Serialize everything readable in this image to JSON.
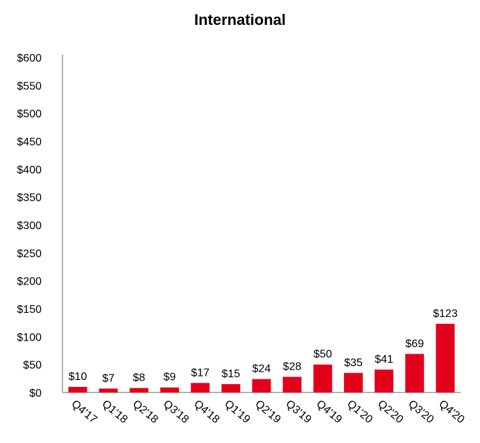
{
  "chart_data": {
    "type": "bar",
    "title": "International",
    "xlabel": "",
    "ylabel": "",
    "categories": [
      "Q4'17",
      "Q1'18",
      "Q2'18",
      "Q3'18",
      "Q4'18",
      "Q1'19",
      "Q2'19",
      "Q3'19",
      "Q4'19",
      "Q1'20",
      "Q2'20",
      "Q3'20",
      "Q4'20"
    ],
    "values": [
      10,
      7,
      8,
      9,
      17,
      15,
      24,
      28,
      50,
      35,
      41,
      69,
      123
    ],
    "data_labels": [
      "$10",
      "$7",
      "$8",
      "$9",
      "$17",
      "$15",
      "$24",
      "$28",
      "$50",
      "$35",
      "$41",
      "$69",
      "$123"
    ],
    "ylim": [
      0,
      600
    ],
    "yticks": [
      0,
      50,
      100,
      150,
      200,
      250,
      300,
      350,
      400,
      450,
      500,
      550,
      600
    ],
    "ytick_labels": [
      "$0",
      "$50",
      "$100",
      "$150",
      "$200",
      "$250",
      "$300",
      "$350",
      "$400",
      "$450",
      "$500",
      "$550",
      "$600"
    ],
    "grid": false,
    "legend": "none",
    "bar_color": "#E3001B",
    "axis_color": "#999999"
  }
}
